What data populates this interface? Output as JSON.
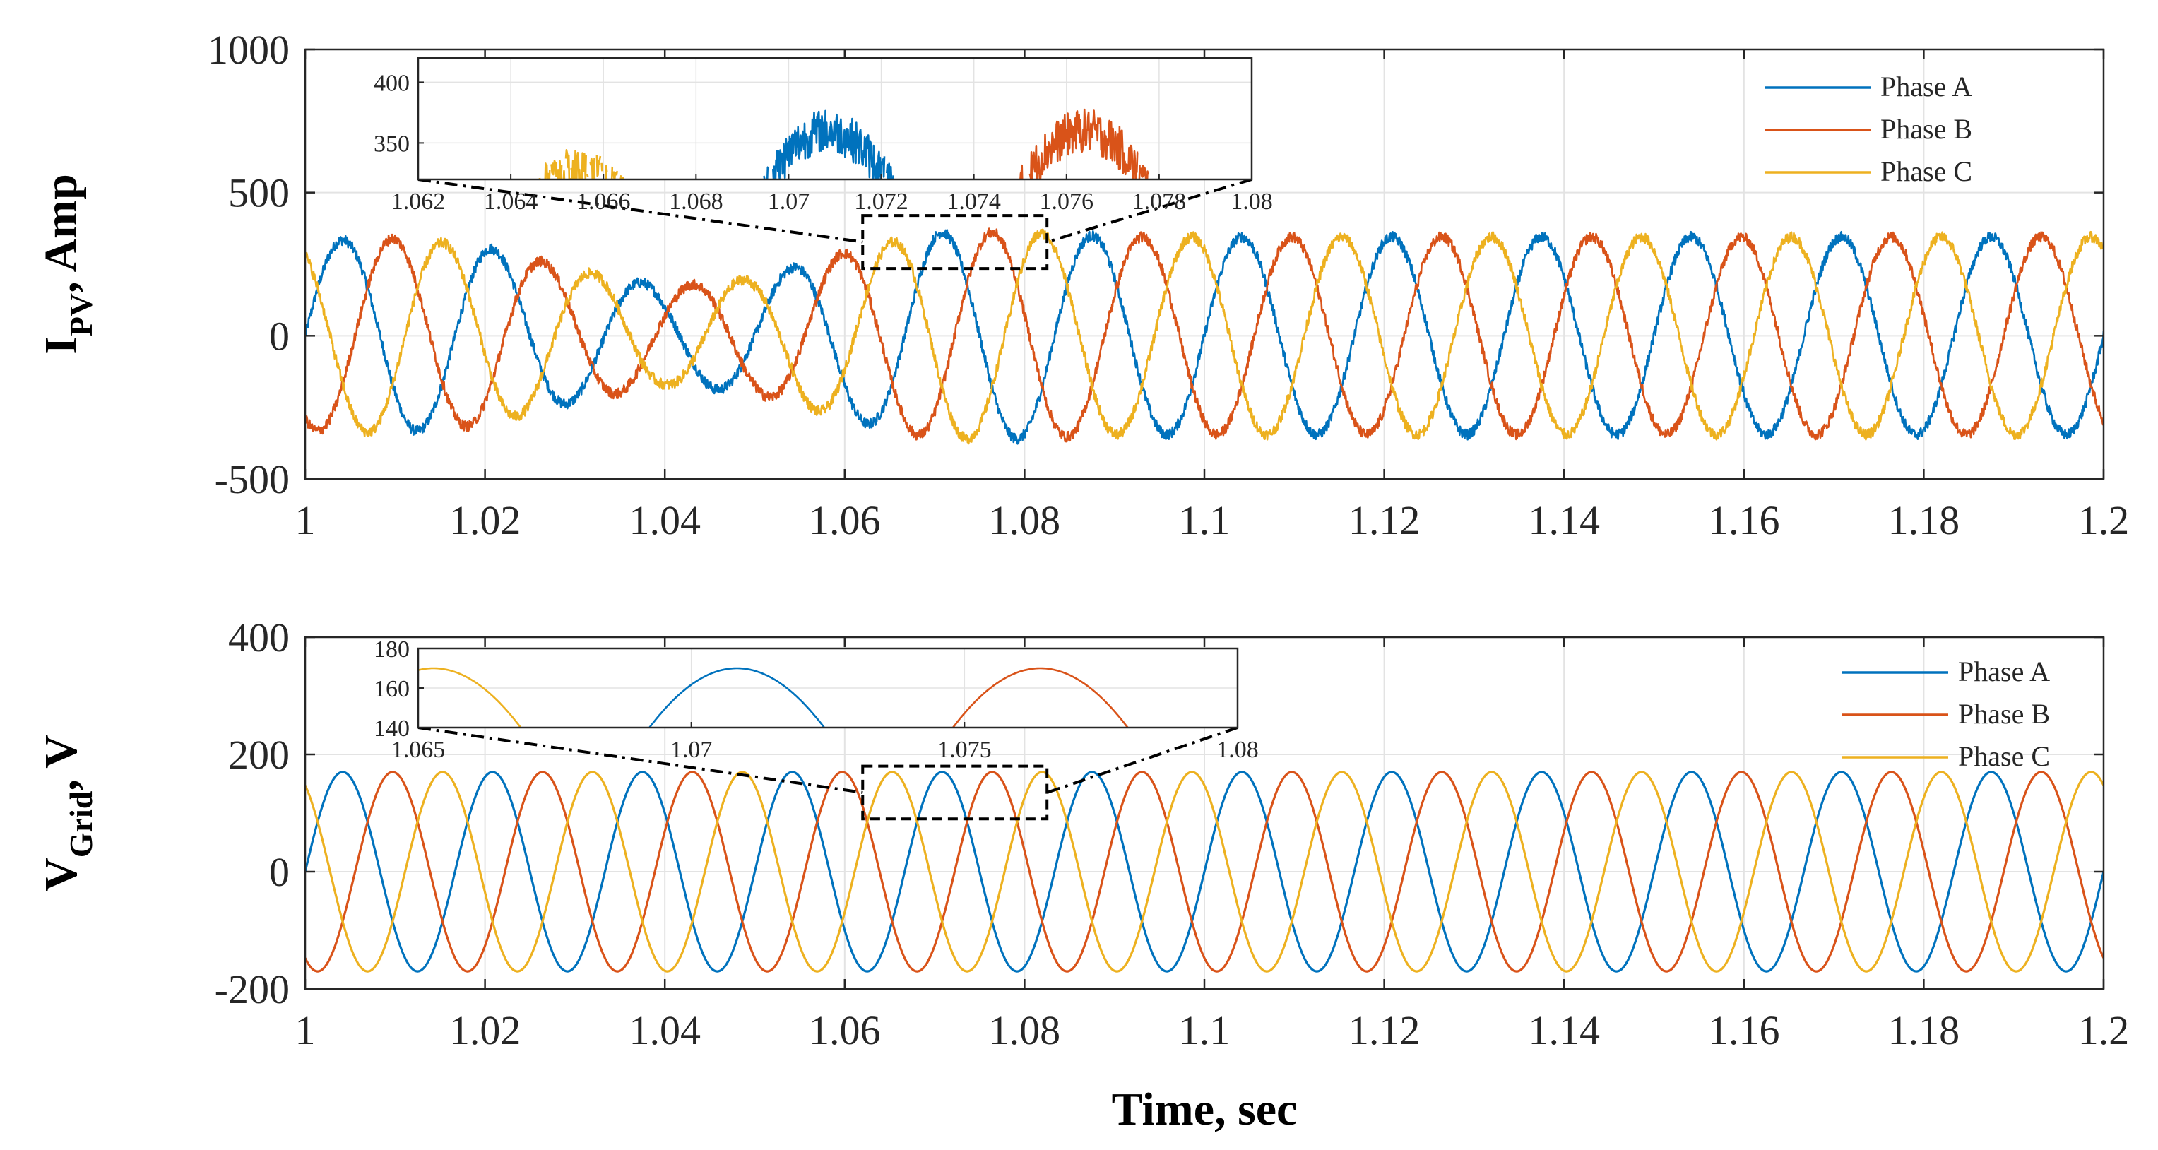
{
  "chart_data": [
    {
      "type": "line",
      "panel": "top",
      "ylabel_main": "I",
      "ylabel_sub": "PV",
      "ylabel_rest": ", Amp",
      "xlabel": "",
      "xlim": [
        1,
        1.2
      ],
      "ylim": [
        -500,
        1000
      ],
      "xticks": [
        1,
        1.02,
        1.04,
        1.06,
        1.08,
        1.1,
        1.12,
        1.14,
        1.16,
        1.18,
        1.2
      ],
      "xtick_labels": [
        "1",
        "1.02",
        "1.04",
        "1.06",
        "1.08",
        "1.1",
        "1.12",
        "1.14",
        "1.16",
        "1.18",
        "1.2"
      ],
      "yticks": [
        -500,
        0,
        500,
        1000
      ],
      "ytick_labels": [
        "-500",
        "0",
        "500",
        "1000"
      ],
      "frequency_hz": 60,
      "noisy": true,
      "amplitude_profile": {
        "t": [
          1.0,
          1.01,
          1.02,
          1.03,
          1.04,
          1.05,
          1.06,
          1.07,
          1.08,
          1.09,
          1.2
        ],
        "amp": [
          330,
          340,
          310,
          230,
          170,
          200,
          290,
          360,
          360,
          345,
          345
        ]
      },
      "series": [
        {
          "name": "Phase A",
          "color": "#0072BD",
          "phase_deg": 0
        },
        {
          "name": "Phase B",
          "color": "#D95319",
          "phase_deg": -120
        },
        {
          "name": "Phase C",
          "color": "#EDB120",
          "phase_deg": 120
        }
      ],
      "legend_location": "top-right",
      "zoom_box": {
        "x": [
          1.062,
          1.0825
        ],
        "y": [
          235,
          420
        ]
      },
      "inset": {
        "xlim": [
          1.062,
          1.08
        ],
        "ylim": [
          320,
          420
        ],
        "xticks": [
          1.062,
          1.064,
          1.066,
          1.068,
          1.07,
          1.072,
          1.074,
          1.076,
          1.078,
          1.08
        ],
        "xtick_labels": [
          "1.062",
          "1.064",
          "1.066",
          "1.068",
          "1.07",
          "1.072",
          "1.074",
          "1.076",
          "1.078",
          "1.08"
        ],
        "yticks": [
          350,
          400
        ],
        "ytick_labels": [
          "350",
          "400"
        ]
      }
    },
    {
      "type": "line",
      "panel": "bottom",
      "ylabel_main": "V",
      "ylabel_sub": "Grid",
      "ylabel_rest": ", V",
      "xlabel": "Time, sec",
      "xlim": [
        1,
        1.2
      ],
      "ylim": [
        -200,
        400
      ],
      "xticks": [
        1,
        1.02,
        1.04,
        1.06,
        1.08,
        1.1,
        1.12,
        1.14,
        1.16,
        1.18,
        1.2
      ],
      "xtick_labels": [
        "1",
        "1.02",
        "1.04",
        "1.06",
        "1.08",
        "1.1",
        "1.12",
        "1.14",
        "1.16",
        "1.18",
        "1.2"
      ],
      "yticks": [
        -200,
        0,
        200,
        400
      ],
      "ytick_labels": [
        "-200",
        "0",
        "200",
        "400"
      ],
      "frequency_hz": 60,
      "amplitude": 170,
      "noisy": false,
      "series": [
        {
          "name": "Phase A",
          "color": "#0072BD",
          "phase_deg": 0
        },
        {
          "name": "Phase B",
          "color": "#D95319",
          "phase_deg": -120
        },
        {
          "name": "Phase C",
          "color": "#EDB120",
          "phase_deg": 120
        }
      ],
      "legend_location": "top-right",
      "zoom_box": {
        "x": [
          1.062,
          1.0825
        ],
        "y": [
          90,
          180
        ]
      },
      "inset": {
        "xlim": [
          1.065,
          1.08
        ],
        "ylim": [
          140,
          180
        ],
        "xticks": [
          1.065,
          1.07,
          1.075,
          1.08
        ],
        "xtick_labels": [
          "1.065",
          "1.07",
          "1.075",
          "1.08"
        ],
        "yticks": [
          140,
          160,
          180
        ],
        "ytick_labels": [
          "140",
          "160",
          "180"
        ]
      }
    }
  ]
}
